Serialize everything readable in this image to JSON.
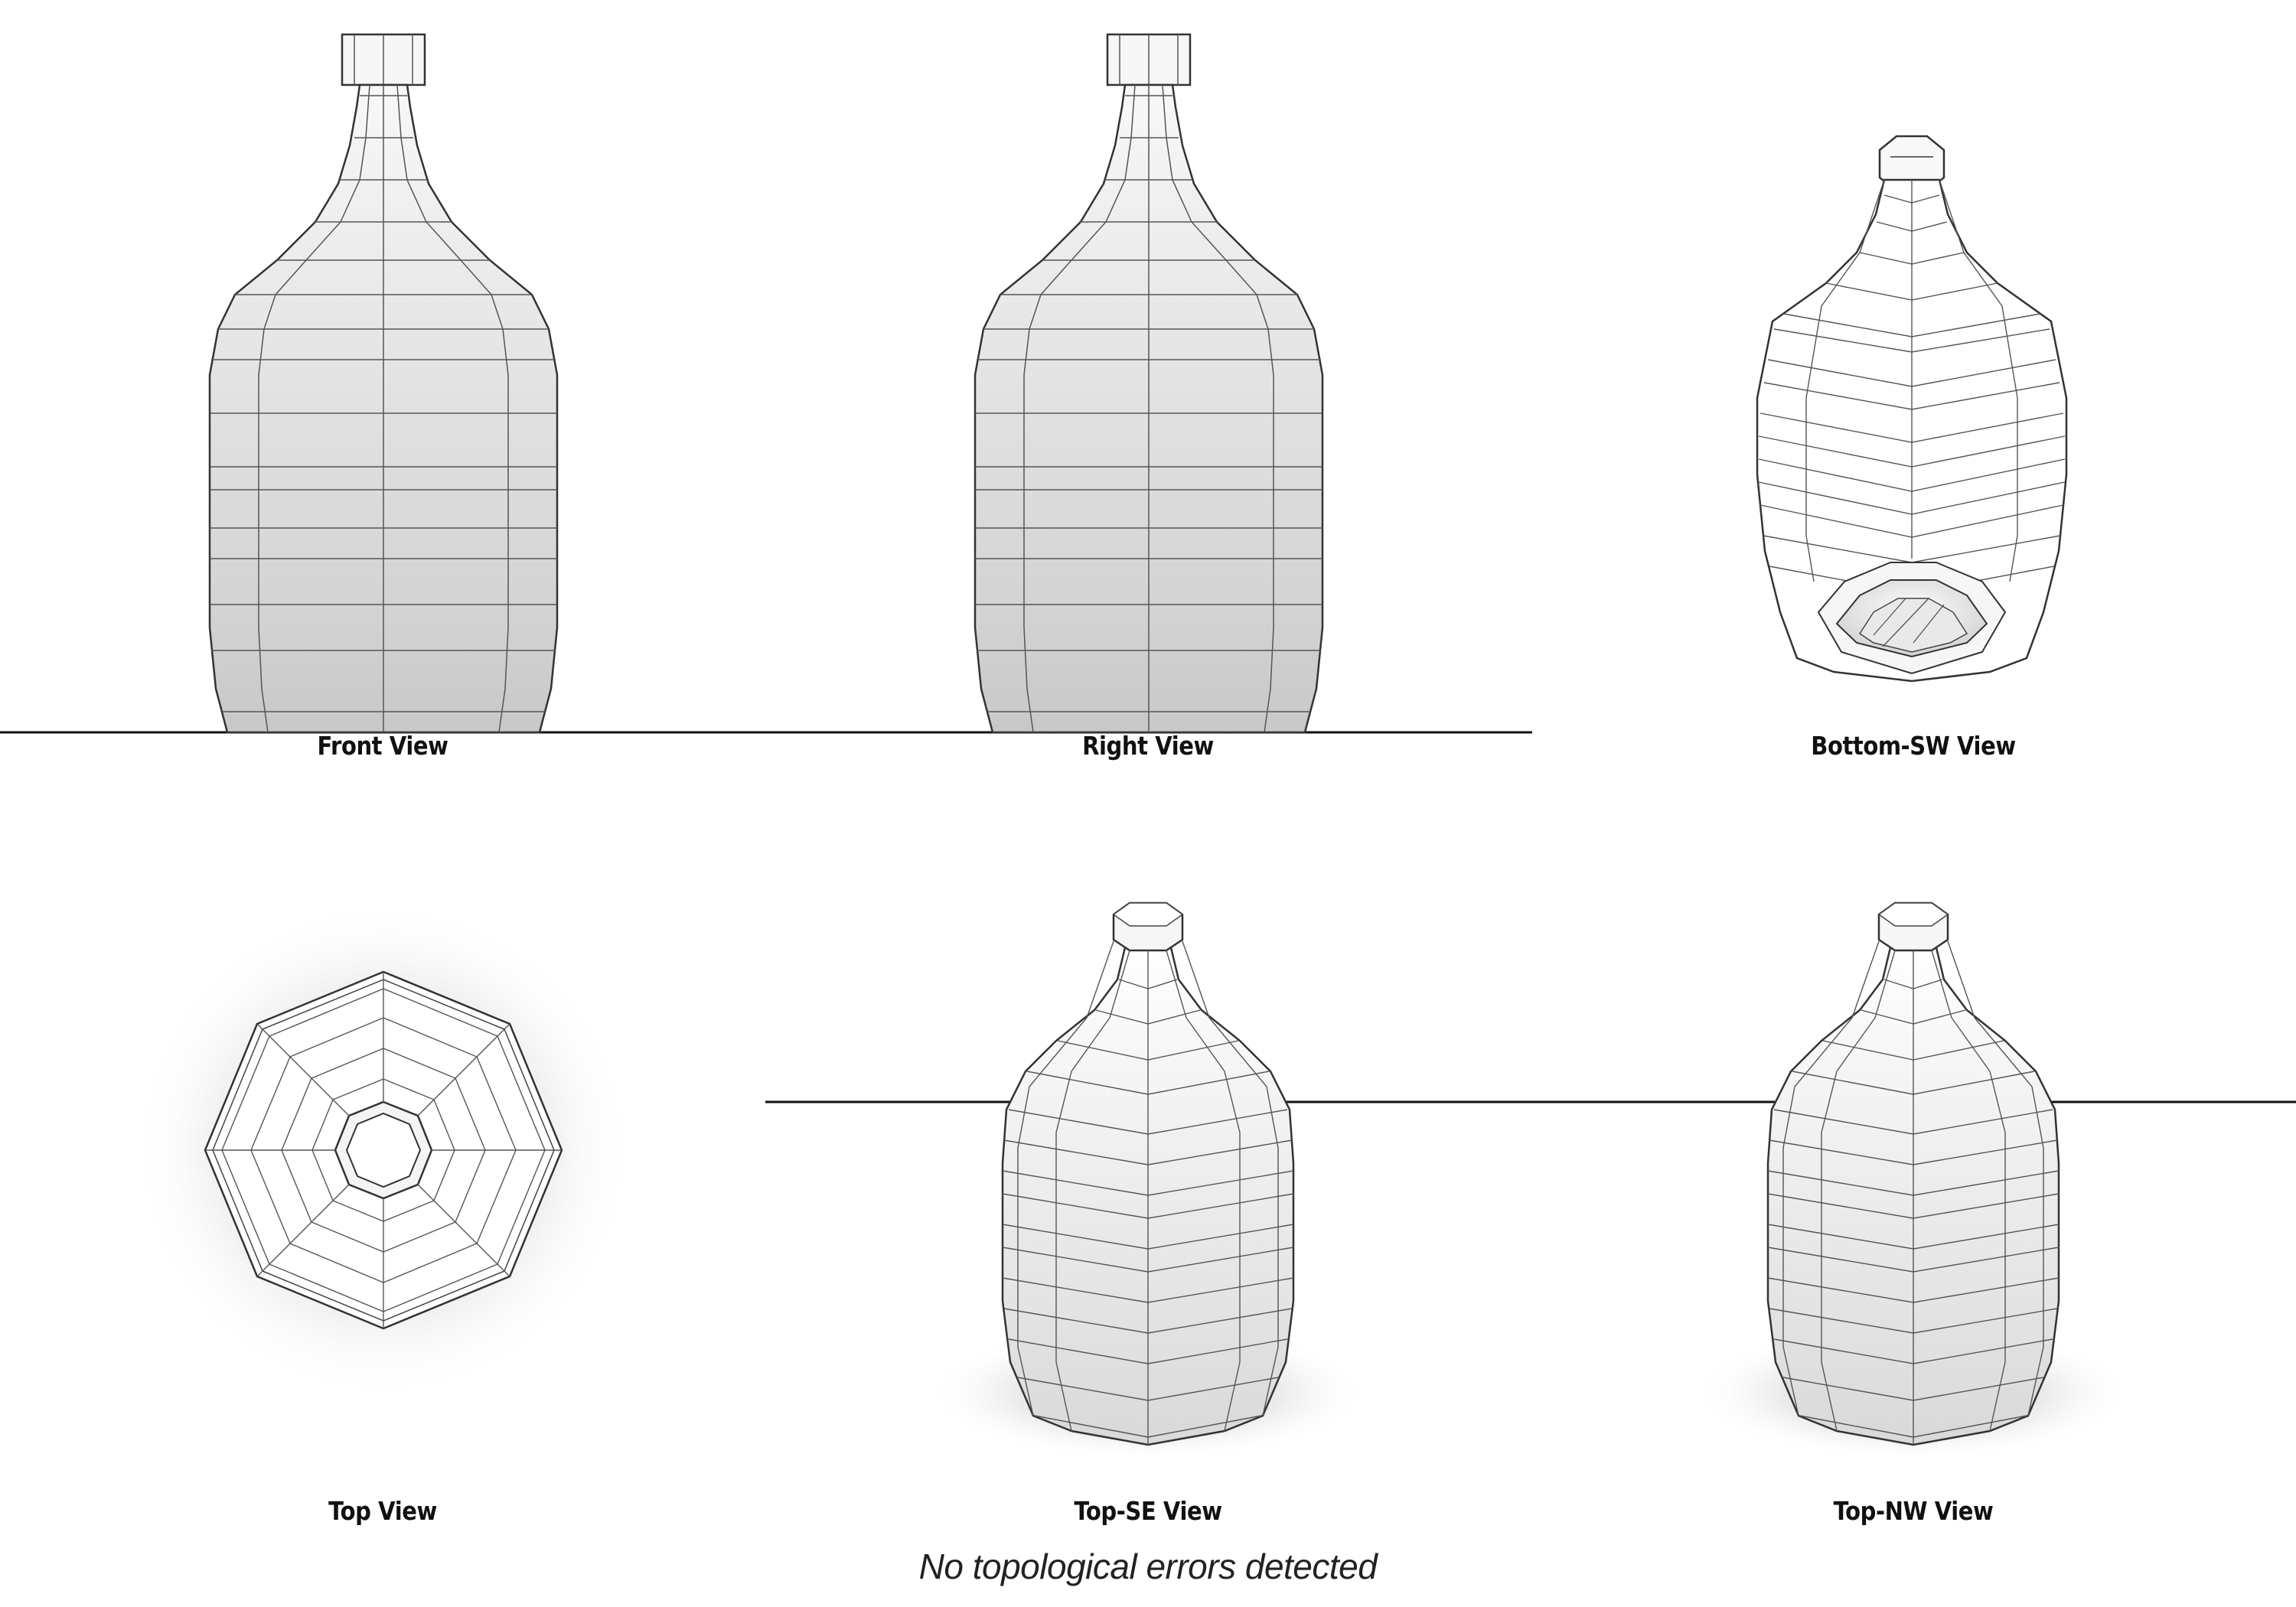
{
  "views": {
    "front": {
      "label": "Front View"
    },
    "right": {
      "label": "Right View"
    },
    "bottom_sw": {
      "label": "Bottom-SW View"
    },
    "top": {
      "label": "Top View"
    },
    "top_se": {
      "label": "Top-SE View"
    },
    "top_nw": {
      "label": "Top-NW View"
    }
  },
  "status": {
    "message": "No topological errors detected"
  },
  "colors": {
    "background": "#ffffff",
    "wire": "#3a3a3a",
    "ground_line": "#111111",
    "shade_light": "#f4f4f4",
    "shade_dark": "#cfcfcf"
  }
}
